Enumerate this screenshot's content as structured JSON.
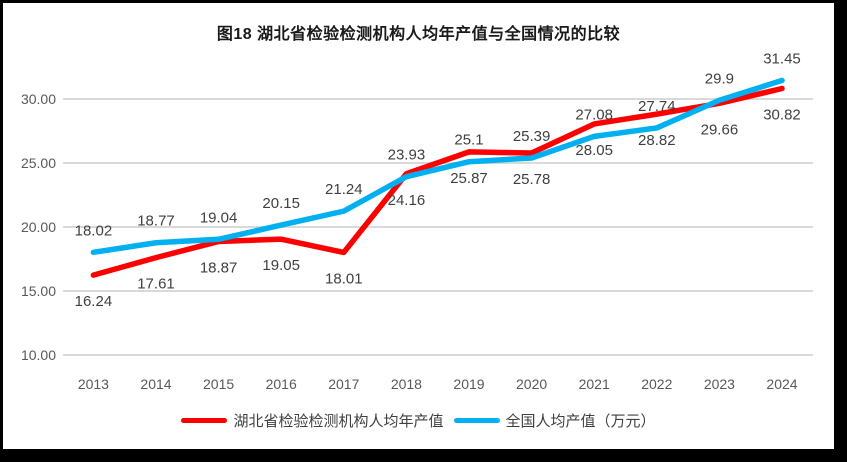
{
  "colors": {
    "hubei_red": "#FF0000",
    "national_blue": "#00B0F0",
    "gridline": "#D9D9D9",
    "axis_text": "#595959",
    "label_text": "#404040",
    "title_text": "#1a1a1a",
    "frame": "#000000",
    "background": "#FFFFFF"
  },
  "chart_data": {
    "type": "line",
    "title": "图18 湖北省检验检测机构人均年产值与全国情况的比较",
    "categories": [
      "2013",
      "2014",
      "2015",
      "2016",
      "2017",
      "2018",
      "2019",
      "2020",
      "2021",
      "2022",
      "2023",
      "2024"
    ],
    "series": [
      {
        "name": "湖北省检验检测机构人均年产值",
        "color_key": "hubei_red",
        "label_position": "below",
        "values": [
          16.24,
          17.61,
          18.87,
          19.05,
          18.01,
          24.16,
          25.87,
          25.78,
          28.05,
          28.82,
          29.66,
          30.82
        ],
        "labels": [
          "16.24",
          "17.61",
          "18.87",
          "19.05",
          "18.01",
          "24.16",
          "25.87",
          "25.78",
          "28.05",
          "28.82",
          "29.66",
          "30.82"
        ]
      },
      {
        "name": "全国人均产值（万元）",
        "color_key": "national_blue",
        "label_position": "above",
        "values": [
          18.02,
          18.77,
          19.04,
          20.15,
          21.24,
          23.93,
          25.1,
          25.39,
          27.08,
          27.74,
          29.9,
          31.45
        ],
        "labels": [
          "18.02",
          "18.77",
          "19.04",
          "20.15",
          "21.24",
          "23.93",
          "25.1",
          "25.39",
          "27.08",
          "27.74",
          "29.9",
          "31.45"
        ]
      }
    ],
    "y_ticks": [
      "10.00",
      "15.00",
      "20.00",
      "25.00",
      "30.00"
    ],
    "ylim": [
      10,
      33.5
    ],
    "xlabel": "",
    "ylabel": "",
    "grid": "horizontal-only",
    "legend_position": "bottom"
  }
}
